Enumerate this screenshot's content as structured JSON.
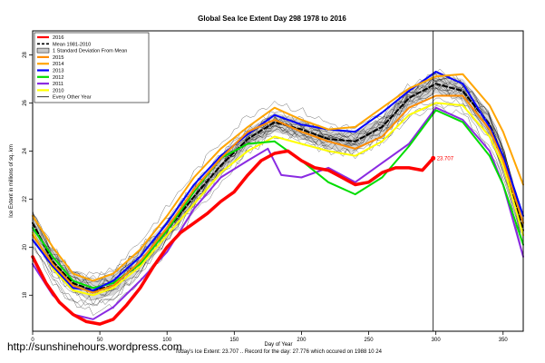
{
  "chart_data": {
    "type": "line",
    "title": "Global Sea Ice Extent Day 298 1978 to 2016",
    "xlabel": "Day of Year",
    "ylabel": "Ice Extent in millions of sq. km",
    "xlim": [
      0,
      365
    ],
    "ylim": [
      16.5,
      29
    ],
    "x_ticks": [
      0,
      50,
      100,
      150,
      200,
      250,
      300,
      350
    ],
    "y_ticks": [
      18,
      20,
      22,
      24,
      26,
      28
    ],
    "marker_day": 298,
    "current_value_label": "23.707",
    "footer": "Today's Ice Extent: 23.707 .. Record for the day: 27.776 which occured on 1988 10 24",
    "watermark": "http://sunshinehours.wordpress.com",
    "legend": [
      {
        "label": "2016",
        "color": "#ff0000",
        "style": "thick"
      },
      {
        "label": "Mean 1981-2010",
        "color": "#000000",
        "style": "dashed"
      },
      {
        "label": "1 Standard Deviation From Mean",
        "color": "#b4b4b4",
        "style": "box"
      },
      {
        "label": "2015",
        "color": "#ff8c00",
        "style": "thick"
      },
      {
        "label": "2014",
        "color": "#ffa500",
        "style": "thick"
      },
      {
        "label": "2013",
        "color": "#0000ff",
        "style": "thick"
      },
      {
        "label": "2012",
        "color": "#00dd00",
        "style": "thick"
      },
      {
        "label": "2011",
        "color": "#8a2be2",
        "style": "thick"
      },
      {
        "label": "2010",
        "color": "#ffff00",
        "style": "thick"
      },
      {
        "label": "Every Other Year",
        "color": "#000000",
        "style": "thin"
      }
    ],
    "std_band": {
      "x": [
        0,
        15,
        30,
        45,
        60,
        80,
        100,
        120,
        140,
        160,
        180,
        200,
        220,
        240,
        260,
        280,
        300,
        320,
        340,
        350,
        365
      ],
      "upper": [
        21.4,
        19.8,
        18.9,
        18.6,
        18.9,
        19.9,
        21.1,
        22.5,
        23.8,
        24.9,
        25.6,
        25.3,
        24.9,
        24.8,
        25.4,
        26.6,
        27.2,
        27.0,
        25.6,
        24.2,
        21.2
      ],
      "lower": [
        20.6,
        19.0,
        18.1,
        17.8,
        18.0,
        19.0,
        20.3,
        21.7,
        23.0,
        24.1,
        24.8,
        24.5,
        24.1,
        24.0,
        24.6,
        25.8,
        26.4,
        26.1,
        24.6,
        23.2,
        20.2
      ]
    },
    "series": [
      {
        "name": "Mean 1981-2010",
        "color": "#000000",
        "width": 2,
        "dash": "5,3",
        "x": [
          0,
          15,
          30,
          45,
          60,
          80,
          100,
          120,
          140,
          160,
          180,
          200,
          220,
          240,
          260,
          280,
          300,
          320,
          340,
          350,
          365
        ],
        "y": [
          21.0,
          19.4,
          18.5,
          18.2,
          18.4,
          19.4,
          20.7,
          22.1,
          23.4,
          24.5,
          25.2,
          24.9,
          24.5,
          24.4,
          25.0,
          26.2,
          26.8,
          26.5,
          25.1,
          23.7,
          20.7
        ]
      },
      {
        "name": "2010",
        "color": "#ffff00",
        "width": 2,
        "x": [
          0,
          15,
          30,
          45,
          60,
          80,
          100,
          120,
          140,
          160,
          180,
          200,
          220,
          240,
          260,
          280,
          300,
          320,
          340,
          350,
          365
        ],
        "y": [
          20.6,
          19.1,
          18.2,
          18.0,
          18.3,
          19.2,
          20.5,
          21.8,
          23.1,
          24.0,
          24.6,
          24.3,
          24.0,
          23.8,
          24.4,
          25.5,
          26.0,
          25.9,
          24.6,
          23.4,
          20.5
        ]
      },
      {
        "name": "2011",
        "color": "#8a2be2",
        "width": 2,
        "x": [
          0,
          15,
          30,
          45,
          60,
          80,
          100,
          120,
          140,
          160,
          175,
          185,
          200,
          220,
          240,
          260,
          280,
          300,
          320,
          340,
          350,
          365
        ],
        "y": [
          19.3,
          18.0,
          17.2,
          17.0,
          17.5,
          18.6,
          19.8,
          21.6,
          22.9,
          23.6,
          24.1,
          23.0,
          22.9,
          23.3,
          22.7,
          23.5,
          24.3,
          25.8,
          25.3,
          24.0,
          22.6,
          19.6
        ]
      },
      {
        "name": "2012",
        "color": "#00dd00",
        "width": 2,
        "x": [
          0,
          15,
          30,
          45,
          60,
          80,
          100,
          120,
          140,
          160,
          180,
          200,
          220,
          240,
          260,
          280,
          300,
          320,
          340,
          350,
          365
        ],
        "y": [
          20.8,
          19.6,
          18.6,
          18.3,
          18.5,
          19.3,
          20.7,
          22.3,
          23.7,
          24.3,
          24.4,
          23.6,
          22.7,
          22.2,
          22.9,
          24.2,
          25.7,
          25.2,
          23.8,
          22.6,
          20.1
        ]
      },
      {
        "name": "2013",
        "color": "#0000ff",
        "width": 2,
        "x": [
          0,
          15,
          30,
          45,
          60,
          80,
          100,
          120,
          140,
          160,
          180,
          200,
          220,
          240,
          260,
          280,
          300,
          320,
          340,
          350,
          365
        ],
        "y": [
          20.3,
          19.2,
          18.3,
          18.2,
          18.6,
          19.6,
          21.0,
          22.6,
          23.8,
          24.7,
          25.5,
          25.1,
          24.9,
          24.8,
          25.6,
          26.5,
          27.3,
          26.8,
          25.0,
          23.8,
          21.3
        ]
      },
      {
        "name": "2014",
        "color": "#ffa500",
        "width": 2,
        "x": [
          0,
          15,
          30,
          45,
          60,
          80,
          100,
          120,
          140,
          160,
          180,
          200,
          220,
          240,
          260,
          280,
          300,
          320,
          340,
          350,
          365
        ],
        "y": [
          21.3,
          20.0,
          18.9,
          18.6,
          18.9,
          19.9,
          21.3,
          22.9,
          24.1,
          25.0,
          25.8,
          25.3,
          24.9,
          25.0,
          25.8,
          26.6,
          27.1,
          27.2,
          25.9,
          24.8,
          22.6
        ]
      },
      {
        "name": "2015",
        "color": "#ff8c00",
        "width": 2,
        "x": [
          0,
          15,
          30,
          45,
          60,
          80,
          100,
          120,
          140,
          160,
          180,
          200,
          220,
          240,
          260,
          280,
          300,
          320,
          340,
          350,
          365
        ],
        "y": [
          20.5,
          19.3,
          18.4,
          18.1,
          18.4,
          19.4,
          20.8,
          22.4,
          23.7,
          24.8,
          25.3,
          24.8,
          24.4,
          24.1,
          24.6,
          25.8,
          26.3,
          26.3,
          24.9,
          23.6,
          21.0
        ]
      },
      {
        "name": "2016",
        "color": "#ff0000",
        "width": 3.5,
        "x": [
          0,
          10,
          20,
          30,
          40,
          50,
          60,
          70,
          80,
          90,
          100,
          110,
          120,
          130,
          140,
          150,
          160,
          170,
          180,
          190,
          200,
          210,
          220,
          230,
          240,
          250,
          260,
          270,
          280,
          290,
          298
        ],
        "y": [
          19.6,
          18.5,
          17.7,
          17.2,
          16.9,
          16.8,
          17.0,
          17.6,
          18.3,
          19.2,
          20.0,
          20.6,
          21.0,
          21.4,
          21.9,
          22.3,
          23.0,
          23.6,
          23.9,
          24.0,
          23.6,
          23.3,
          23.2,
          22.9,
          22.6,
          22.7,
          23.1,
          23.3,
          23.3,
          23.2,
          23.7
        ]
      }
    ]
  }
}
